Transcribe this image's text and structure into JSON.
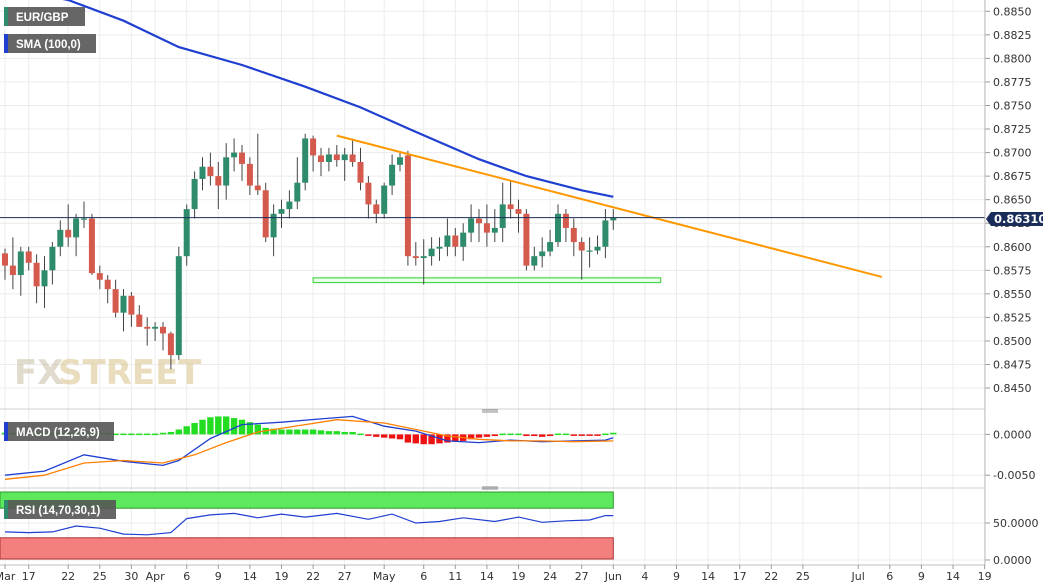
{
  "chart_data": {
    "type": "candlestick",
    "main": {
      "symbol": "EUR/GBP",
      "indicator_label": "SMA (100,0)",
      "last_price_label": "0.863100",
      "y_ticks": [
        "0.8850",
        "0.8825",
        "0.8800",
        "0.8775",
        "0.8750",
        "0.8725",
        "0.8700",
        "0.8675",
        "0.8650",
        "0.8625",
        "0.8600",
        "0.8575",
        "0.8550",
        "0.8525",
        "0.8500",
        "0.8475",
        "0.8450"
      ],
      "ylim": [
        0.8432,
        0.8862
      ],
      "colors": {
        "up": "#2e8b6b",
        "down": "#d45a4e",
        "sma": "#1f3fd1",
        "trendline": "#ff9800",
        "support_zone": "#4bd64b",
        "price_line": "#1a2d5a"
      },
      "candles": [
        [
          0,
          0.8593,
          0.8598,
          0.8565,
          0.858
        ],
        [
          1,
          0.858,
          0.861,
          0.8555,
          0.857
        ],
        [
          2,
          0.857,
          0.86,
          0.8548,
          0.8595
        ],
        [
          3,
          0.8595,
          0.86,
          0.8575,
          0.8583
        ],
        [
          4,
          0.8583,
          0.8592,
          0.854,
          0.8558
        ],
        [
          5,
          0.8558,
          0.859,
          0.8535,
          0.8575
        ],
        [
          6,
          0.8575,
          0.8605,
          0.856,
          0.86
        ],
        [
          7,
          0.86,
          0.8628,
          0.859,
          0.8618
        ],
        [
          8,
          0.8618,
          0.8645,
          0.86,
          0.861
        ],
        [
          9,
          0.861,
          0.8635,
          0.859,
          0.863
        ],
        [
          10,
          0.863,
          0.8648,
          0.862,
          0.863
        ],
        [
          11,
          0.863,
          0.8635,
          0.857,
          0.8572
        ],
        [
          12,
          0.8572,
          0.858,
          0.8555,
          0.8565
        ],
        [
          13,
          0.8565,
          0.857,
          0.854,
          0.8555
        ],
        [
          14,
          0.8555,
          0.8565,
          0.8525,
          0.853
        ],
        [
          15,
          0.853,
          0.8555,
          0.851,
          0.8548
        ],
        [
          16,
          0.8548,
          0.8552,
          0.8515,
          0.8528
        ],
        [
          17,
          0.8528,
          0.8538,
          0.8515,
          0.8515
        ],
        [
          18,
          0.8515,
          0.8525,
          0.8495,
          0.8513
        ],
        [
          19,
          0.8513,
          0.852,
          0.85,
          0.8515
        ],
        [
          20,
          0.8515,
          0.852,
          0.849,
          0.8508
        ],
        [
          21,
          0.8508,
          0.851,
          0.847,
          0.8485
        ],
        [
          22,
          0.8485,
          0.86,
          0.848,
          0.859
        ],
        [
          23,
          0.859,
          0.8645,
          0.858,
          0.864
        ],
        [
          24,
          0.864,
          0.868,
          0.863,
          0.8672
        ],
        [
          25,
          0.8672,
          0.8695,
          0.866,
          0.8685
        ],
        [
          26,
          0.8685,
          0.87,
          0.8665,
          0.8675
        ],
        [
          27,
          0.8675,
          0.869,
          0.864,
          0.8665
        ],
        [
          28,
          0.8665,
          0.871,
          0.865,
          0.8695
        ],
        [
          29,
          0.8695,
          0.8715,
          0.868,
          0.87
        ],
        [
          30,
          0.87,
          0.8708,
          0.867,
          0.8688
        ],
        [
          31,
          0.8688,
          0.8695,
          0.8655,
          0.8665
        ],
        [
          32,
          0.8665,
          0.872,
          0.8655,
          0.866
        ],
        [
          33,
          0.866,
          0.8668,
          0.8605,
          0.861
        ],
        [
          34,
          0.861,
          0.8645,
          0.859,
          0.8635
        ],
        [
          35,
          0.8635,
          0.865,
          0.862,
          0.864
        ],
        [
          36,
          0.864,
          0.866,
          0.863,
          0.8648
        ],
        [
          37,
          0.8648,
          0.8695,
          0.864,
          0.8668
        ],
        [
          38,
          0.8668,
          0.872,
          0.866,
          0.8715
        ],
        [
          39,
          0.8715,
          0.8718,
          0.868,
          0.8697
        ],
        [
          40,
          0.8697,
          0.8705,
          0.8675,
          0.869
        ],
        [
          41,
          0.869,
          0.8705,
          0.868,
          0.8698
        ],
        [
          42,
          0.8698,
          0.8708,
          0.8685,
          0.8692
        ],
        [
          43,
          0.8692,
          0.8705,
          0.867,
          0.8698
        ],
        [
          44,
          0.8698,
          0.8715,
          0.8685,
          0.869
        ],
        [
          45,
          0.869,
          0.8705,
          0.866,
          0.8668
        ],
        [
          46,
          0.8668,
          0.8675,
          0.863,
          0.8645
        ],
        [
          47,
          0.8645,
          0.865,
          0.8625,
          0.8635
        ],
        [
          48,
          0.8635,
          0.8668,
          0.863,
          0.8665
        ],
        [
          49,
          0.8665,
          0.8698,
          0.8655,
          0.8687
        ],
        [
          50,
          0.8687,
          0.87,
          0.868,
          0.8695
        ],
        [
          51,
          0.8697,
          0.8702,
          0.858,
          0.859
        ],
        [
          52,
          0.859,
          0.8605,
          0.858,
          0.8588
        ],
        [
          53,
          0.8588,
          0.8608,
          0.856,
          0.859
        ],
        [
          54,
          0.859,
          0.861,
          0.858,
          0.8598
        ],
        [
          55,
          0.8598,
          0.861,
          0.8585,
          0.86
        ],
        [
          56,
          0.86,
          0.863,
          0.859,
          0.8612
        ],
        [
          57,
          0.8612,
          0.862,
          0.859,
          0.86
        ],
        [
          58,
          0.86,
          0.8625,
          0.8585,
          0.8615
        ],
        [
          59,
          0.8615,
          0.8645,
          0.8605,
          0.863
        ],
        [
          60,
          0.863,
          0.864,
          0.8605,
          0.8625
        ],
        [
          61,
          0.8625,
          0.8645,
          0.86,
          0.8615
        ],
        [
          62,
          0.8615,
          0.864,
          0.8605,
          0.862
        ],
        [
          63,
          0.862,
          0.8668,
          0.8605,
          0.8645
        ],
        [
          64,
          0.8645,
          0.867,
          0.863,
          0.864
        ],
        [
          65,
          0.864,
          0.865,
          0.8615,
          0.8635
        ],
        [
          66,
          0.8635,
          0.864,
          0.8575,
          0.858
        ],
        [
          67,
          0.858,
          0.86,
          0.8575,
          0.859
        ],
        [
          68,
          0.859,
          0.861,
          0.8578,
          0.8595
        ],
        [
          69,
          0.8595,
          0.8618,
          0.859,
          0.8605
        ],
        [
          70,
          0.8605,
          0.8645,
          0.86,
          0.8635
        ],
        [
          71,
          0.8635,
          0.864,
          0.8605,
          0.862
        ],
        [
          72,
          0.862,
          0.863,
          0.859,
          0.8605
        ],
        [
          73,
          0.8605,
          0.861,
          0.8565,
          0.8596
        ],
        [
          74,
          0.8596,
          0.861,
          0.8578,
          0.8596
        ],
        [
          75,
          0.8596,
          0.8612,
          0.8592,
          0.86
        ],
        [
          76,
          0.86,
          0.864,
          0.8588,
          0.8628
        ],
        [
          77,
          0.8628,
          0.864,
          0.8618,
          0.8631
        ]
      ],
      "sma": [
        [
          0,
          0.8875
        ],
        [
          8,
          0.8862
        ],
        [
          15,
          0.884
        ],
        [
          22,
          0.8812
        ],
        [
          30,
          0.8793
        ],
        [
          38,
          0.877
        ],
        [
          45,
          0.8748
        ],
        [
          52,
          0.8722
        ],
        [
          60,
          0.8693
        ],
        [
          66,
          0.8675
        ],
        [
          73,
          0.866
        ],
        [
          77,
          0.8653
        ]
      ],
      "trendline": [
        [
          42,
          0.8718
        ],
        [
          111,
          0.8568
        ]
      ],
      "support_zone": {
        "x": [
          39,
          83
        ],
        "y": [
          0.8562,
          0.8567
        ]
      }
    },
    "macd": {
      "label": "MACD (12,26,9)",
      "y_ticks": [
        "0.0000",
        "-0.0050"
      ],
      "ylim": [
        -0.0062,
        0.0025
      ],
      "colors": {
        "hist_pos": "#22dd22",
        "hist_neg": "#ee1111",
        "macd": "#1f3fd1",
        "signal": "#ff7f00"
      },
      "histogram": [
        0.0002,
        0.0002,
        0.0002,
        0.0002,
        0.0002,
        0.0002,
        0.0002,
        0.0002,
        0.0002,
        0.0002,
        0.0002,
        0.0002,
        0.0002,
        0.0002,
        0.0001,
        0.0001,
        0.0001,
        0.0001,
        0.0001,
        0.0001,
        0.0002,
        0.0003,
        0.0006,
        0.001,
        0.0014,
        0.0018,
        0.0021,
        0.0022,
        0.0022,
        0.002,
        0.0018,
        0.0015,
        0.0012,
        0.0008,
        0.0007,
        0.0006,
        0.0006,
        0.0006,
        0.0006,
        0.0006,
        0.0005,
        0.0004,
        0.0004,
        0.0003,
        0.0003,
        0.0001,
        -0.0001,
        -0.0003,
        -0.0004,
        -0.0005,
        -0.0006,
        -0.001,
        -0.0011,
        -0.0012,
        -0.0012,
        -0.0011,
        -0.001,
        -0.0009,
        -0.0008,
        -0.0006,
        -0.0004,
        -0.0003,
        -0.0002,
        0.0001,
        0.0001,
        0.0001,
        -0.0002,
        -0.0002,
        -0.0003,
        -0.0002,
        0.0001,
        0.0001,
        -0.0001,
        -0.0001,
        -0.0001,
        -0.0001,
        0.0001,
        0.0002
      ],
      "macd_line": [
        [
          0,
          -0.005
        ],
        [
          5,
          -0.0045
        ],
        [
          10,
          -0.0025
        ],
        [
          15,
          -0.0033
        ],
        [
          20,
          -0.0038
        ],
        [
          22,
          -0.0032
        ],
        [
          26,
          -0.0005
        ],
        [
          30,
          0.0012
        ],
        [
          35,
          0.0015
        ],
        [
          40,
          0.0019
        ],
        [
          44,
          0.0022
        ],
        [
          48,
          0.001
        ],
        [
          52,
          0.0004
        ],
        [
          56,
          -0.0008
        ],
        [
          60,
          -0.001
        ],
        [
          64,
          -0.0007
        ],
        [
          68,
          -0.0009
        ],
        [
          72,
          -0.0008
        ],
        [
          76,
          -0.0007
        ],
        [
          77,
          -0.0004
        ]
      ],
      "signal_line": [
        [
          0,
          -0.0055
        ],
        [
          5,
          -0.005
        ],
        [
          10,
          -0.0035
        ],
        [
          15,
          -0.0032
        ],
        [
          20,
          -0.0035
        ],
        [
          24,
          -0.0025
        ],
        [
          28,
          -0.001
        ],
        [
          32,
          0.0003
        ],
        [
          38,
          0.0012
        ],
        [
          42,
          0.0018
        ],
        [
          48,
          0.0014
        ],
        [
          52,
          0.0006
        ],
        [
          56,
          -0.0002
        ],
        [
          60,
          -0.0006
        ],
        [
          64,
          -0.0008
        ],
        [
          68,
          -0.0008
        ],
        [
          72,
          -0.0009
        ],
        [
          77,
          -0.0008
        ]
      ]
    },
    "rsi": {
      "label": "RSI (14,70,30,1)",
      "y_ticks": [
        "50.0000",
        "0.0000"
      ],
      "ylim": [
        0,
        100
      ],
      "bands": {
        "overbought": 70,
        "oversold": 30
      },
      "colors": {
        "overbought": "#5de85d",
        "oversold": "#f47f7f",
        "line": "#1f3fd1"
      },
      "values": [
        [
          0,
          38
        ],
        [
          3,
          37
        ],
        [
          6,
          38
        ],
        [
          9,
          46
        ],
        [
          12,
          43
        ],
        [
          15,
          35
        ],
        [
          18,
          34
        ],
        [
          21,
          37
        ],
        [
          23,
          56
        ],
        [
          26,
          61
        ],
        [
          29,
          63
        ],
        [
          32,
          57
        ],
        [
          35,
          62
        ],
        [
          38,
          58
        ],
        [
          42,
          63
        ],
        [
          46,
          55
        ],
        [
          49,
          62
        ],
        [
          52,
          50
        ],
        [
          55,
          52
        ],
        [
          58,
          57
        ],
        [
          62,
          52
        ],
        [
          65,
          58
        ],
        [
          68,
          51
        ],
        [
          71,
          53
        ],
        [
          74,
          54
        ],
        [
          76,
          60
        ],
        [
          77,
          60
        ]
      ]
    },
    "x_axis": {
      "tick_labels": [
        "Mar",
        "17",
        "22",
        "25",
        "30",
        "Apr",
        "6",
        "9",
        "14",
        "19",
        "22",
        "27",
        "May",
        "6",
        "11",
        "14",
        "19",
        "24",
        "27",
        "Jun",
        "4",
        "9",
        "14",
        "17",
        "22",
        "25",
        "Jul",
        "6",
        "9",
        "14",
        "19"
      ],
      "tick_index": [
        0,
        3,
        8,
        12,
        16,
        19,
        23,
        27,
        31,
        35,
        39,
        43,
        48,
        53,
        57,
        61,
        65,
        69,
        73,
        77,
        81,
        85,
        89,
        93,
        97,
        101,
        108,
        112,
        116,
        120,
        124
      ]
    }
  }
}
